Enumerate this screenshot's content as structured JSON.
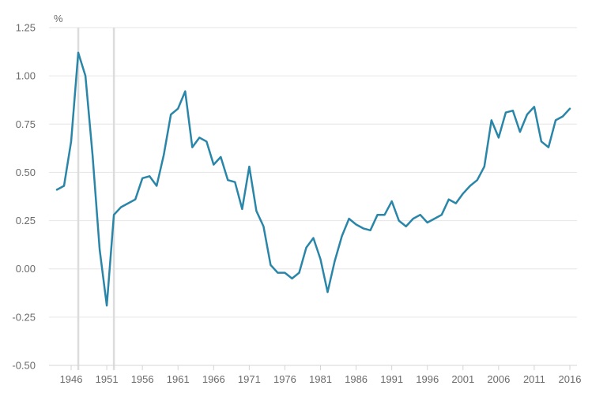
{
  "chart_data": {
    "type": "line",
    "title": "",
    "xlabel": "",
    "ylabel": "",
    "unit_label": "%",
    "xlim": [
      1944,
      2016
    ],
    "ylim": [
      -0.5,
      1.25
    ],
    "y_ticks": [
      "1.25",
      "1.00",
      "0.75",
      "0.50",
      "0.25",
      "0.00",
      "-0.25",
      "-0.50"
    ],
    "y_tick_values": [
      1.25,
      1.0,
      0.75,
      0.5,
      0.25,
      0.0,
      -0.25,
      -0.5
    ],
    "x_ticks": [
      "1946",
      "1951",
      "1956",
      "1961",
      "1966",
      "1971",
      "1976",
      "1981",
      "1986",
      "1991",
      "1996",
      "2001",
      "2006",
      "2011",
      "2016"
    ],
    "x_tick_values": [
      1946,
      1951,
      1956,
      1961,
      1966,
      1971,
      1976,
      1981,
      1986,
      1991,
      1996,
      2001,
      2006,
      2011,
      2016
    ],
    "grid": true,
    "vertical_markers": [
      1947,
      1952
    ],
    "series": [
      {
        "name": "series",
        "color": "#2a86a8",
        "x": [
          1944,
          1945,
          1946,
          1947,
          1948,
          1949,
          1950,
          1951,
          1952,
          1953,
          1954,
          1955,
          1956,
          1957,
          1958,
          1959,
          1960,
          1961,
          1962,
          1963,
          1964,
          1965,
          1966,
          1967,
          1968,
          1969,
          1970,
          1971,
          1972,
          1973,
          1974,
          1975,
          1976,
          1977,
          1978,
          1979,
          1980,
          1981,
          1982,
          1983,
          1984,
          1985,
          1986,
          1987,
          1988,
          1989,
          1990,
          1991,
          1992,
          1993,
          1994,
          1995,
          1996,
          1997,
          1998,
          1999,
          2000,
          2001,
          2002,
          2003,
          2004,
          2005,
          2006,
          2007,
          2008,
          2009,
          2010,
          2011,
          2012,
          2013,
          2014,
          2015,
          2016
        ],
        "values": [
          0.41,
          0.43,
          0.66,
          1.12,
          1.0,
          0.59,
          0.1,
          -0.19,
          0.28,
          0.32,
          0.34,
          0.36,
          0.47,
          0.48,
          0.43,
          0.59,
          0.8,
          0.83,
          0.92,
          0.63,
          0.68,
          0.66,
          0.54,
          0.58,
          0.46,
          0.45,
          0.31,
          0.53,
          0.3,
          0.22,
          0.02,
          -0.02,
          -0.02,
          -0.05,
          -0.02,
          0.11,
          0.16,
          0.05,
          -0.12,
          0.04,
          0.17,
          0.26,
          0.23,
          0.21,
          0.2,
          0.28,
          0.28,
          0.35,
          0.25,
          0.22,
          0.26,
          0.28,
          0.24,
          0.26,
          0.28,
          0.36,
          0.34,
          0.39,
          0.43,
          0.46,
          0.53,
          0.77,
          0.68,
          0.81,
          0.82,
          0.71,
          0.8,
          0.84,
          0.66,
          0.63,
          0.77,
          0.79,
          0.83
        ]
      }
    ]
  },
  "colors": {
    "grid": "#e6e6e6",
    "axis": "#d4d4d4",
    "marker": "#dcdcdc",
    "text": "#6b6b6b",
    "line": "#2a86a8"
  }
}
